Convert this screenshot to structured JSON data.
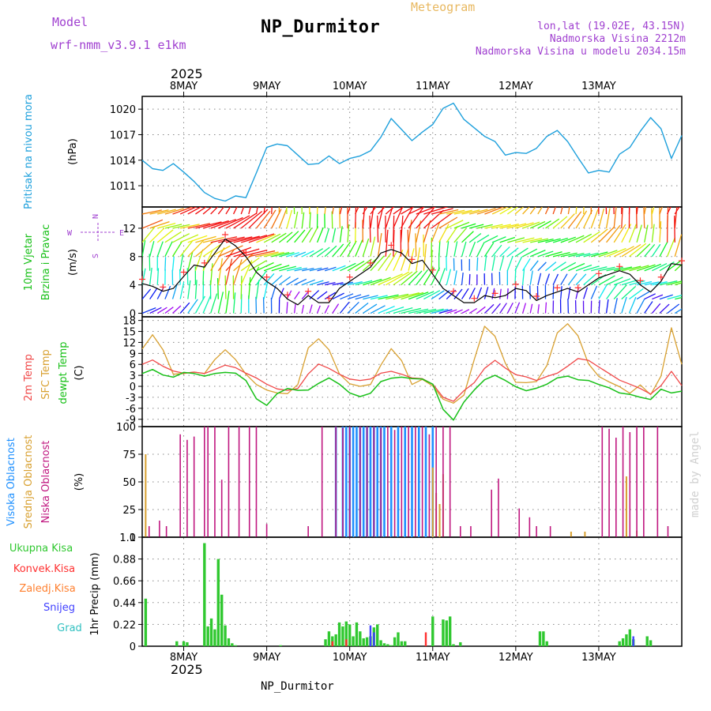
{
  "header": {
    "model_label": "Model",
    "model_name": "wrf-nmm_v3.9.1 e1km",
    "title": "NP_Durmitor",
    "meteogram_label": "Meteogram",
    "lonlat": "lon,lat (19.02E, 43.15N)",
    "altitude": "Nadmorska Visina 2212m",
    "model_altitude": "Nadmorska Visina u modelu 2034.15m",
    "footer": "NP_Durmitor",
    "watermark": "made by Angel",
    "year_top": "2025",
    "year_bottom": "2025"
  },
  "colors": {
    "pressure": "#1ea0dc",
    "wind_speed": "#000000",
    "wind_gust": "#ff3030",
    "temp2m": "#f04848",
    "sfc_temp": "#d8a030",
    "dewpt": "#18c018",
    "cloud_high": "#1e90ff",
    "cloud_mid": "#d8a030",
    "cloud_low": "#c01880",
    "precip_total": "#30c830",
    "precip_conv": "#ff3030",
    "precip_ice": "#ff8030",
    "snow": "#4040ff",
    "graupel": "#30c0c0",
    "title_purple": "#a040d0",
    "meteogram_orange": "#e8b860",
    "watermark": "#d0d0d0"
  },
  "chart_data": {
    "type": "line",
    "x_days": [
      "8MAY",
      "9MAY",
      "10MAY",
      "11MAY",
      "12MAY",
      "13MAY"
    ],
    "x_range_hours": [
      -12,
      144
    ],
    "panels": [
      {
        "id": "pressure",
        "labels": [
          "Pritisak na nivou mora"
        ],
        "unit": "(hPa)",
        "ylim": [
          1008.5,
          1021.5
        ],
        "yticks": [
          1011,
          1014,
          1017,
          1020
        ],
        "series": [
          {
            "name": "Pritisak na nivou mora",
            "x": [
              -12,
              -9,
              -6,
              -3,
              0,
              3,
              6,
              9,
              12,
              15,
              18,
              21,
              24,
              27,
              30,
              33,
              36,
              39,
              42,
              45,
              48,
              51,
              54,
              57,
              60,
              63,
              66,
              69,
              72,
              75,
              78,
              81,
              84,
              87,
              90,
              93,
              96,
              99,
              102,
              105,
              108,
              111,
              114,
              117,
              120,
              123,
              126,
              129,
              132,
              135,
              138,
              141,
              144
            ],
            "y": [
              1014.0,
              1013.0,
              1012.8,
              1013.6,
              1012.6,
              1011.5,
              1010.2,
              1009.5,
              1009.2,
              1009.8,
              1009.6,
              1012.5,
              1015.5,
              1015.9,
              1015.7,
              1014.6,
              1013.5,
              1013.6,
              1014.5,
              1013.6,
              1014.2,
              1014.5,
              1015.1,
              1016.7,
              1018.9,
              1017.6,
              1016.3,
              1017.3,
              1018.2,
              1020.1,
              1020.7,
              1018.8,
              1017.8,
              1016.8,
              1016.2,
              1014.6,
              1014.9,
              1014.8,
              1015.4,
              1016.8,
              1017.5,
              1016.2,
              1014.3,
              1012.5,
              1012.8,
              1012.6,
              1014.7,
              1015.5,
              1017.4,
              1019.0,
              1017.7,
              1014.2,
              1016.9
            ]
          }
        ]
      },
      {
        "id": "wind",
        "labels": [
          "10m Vjetar",
          "Brzina i Pravac"
        ],
        "unit": "(m/s)",
        "compass": [
          "N",
          "W",
          "E",
          "S"
        ],
        "ylim": [
          -0.5,
          15
        ],
        "yticks": [
          0,
          4,
          8,
          12
        ],
        "series": [
          {
            "name": "10m Vjetar",
            "x": [
              -12,
              -9,
              -6,
              -3,
              0,
              3,
              6,
              9,
              12,
              15,
              18,
              21,
              24,
              27,
              30,
              33,
              36,
              39,
              42,
              45,
              48,
              51,
              54,
              57,
              60,
              63,
              66,
              69,
              72,
              75,
              78,
              81,
              84,
              87,
              90,
              93,
              96,
              99,
              102,
              105,
              108,
              111,
              114,
              117,
              120,
              123,
              126,
              129,
              132,
              135,
              138,
              141,
              144
            ],
            "y": [
              4.2,
              3.8,
              3.1,
              3.5,
              5.2,
              6.8,
              6.5,
              8.5,
              10.5,
              9.5,
              8.0,
              5.8,
              4.5,
              3.5,
              2.0,
              1.2,
              2.5,
              1.5,
              1.5,
              3.5,
              4.5,
              5.5,
              6.5,
              8.5,
              9.0,
              8.5,
              7.0,
              7.5,
              5.5,
              3.5,
              2.5,
              1.5,
              1.5,
              2.5,
              2.2,
              2.5,
              3.5,
              3.2,
              1.8,
              2.5,
              3.0,
              3.5,
              3.0,
              4.0,
              5.0,
              5.5,
              6.0,
              5.5,
              4.0,
              3.0,
              4.5,
              7.0,
              6.8
            ]
          }
        ]
      },
      {
        "id": "temperature",
        "labels": [
          "2m Temp",
          "SFC Temp",
          "dewpt Temp"
        ],
        "unit": "(C)",
        "ylim": [
          -11,
          19
        ],
        "yticks": [
          -9,
          -6,
          -3,
          0,
          3,
          6,
          9,
          12,
          15,
          18
        ],
        "series": [
          {
            "name": "2m Temp",
            "x": [
              -12,
              -9,
              -6,
              -3,
              0,
              3,
              6,
              9,
              12,
              15,
              18,
              21,
              24,
              27,
              30,
              33,
              36,
              39,
              42,
              45,
              48,
              51,
              54,
              57,
              60,
              63,
              66,
              69,
              72,
              75,
              78,
              81,
              84,
              87,
              90,
              93,
              96,
              99,
              102,
              105,
              108,
              111,
              114,
              117,
              120,
              123,
              126,
              129,
              132,
              135,
              138,
              141,
              144
            ],
            "y": [
              6.0,
              7.2,
              5.5,
              4.2,
              3.6,
              3.9,
              3.5,
              4.6,
              5.8,
              5.1,
              3.6,
              2.3,
              0.6,
              -0.7,
              -1.1,
              -0.6,
              3.4,
              6.1,
              4.9,
              3.3,
              2.0,
              1.6,
              2.0,
              3.6,
              4.1,
              3.3,
              2.3,
              2.1,
              0.6,
              -3.0,
              -4.1,
              -1.2,
              1.0,
              4.9,
              7.1,
              5.0,
              3.2,
              2.6,
              1.6,
              2.7,
              3.6,
              5.5,
              7.6,
              7.1,
              5.3,
              3.5,
              1.7,
              0.6,
              -0.6,
              -2.1,
              0.2,
              4.1,
              0.2
            ]
          },
          {
            "name": "SFC Temp",
            "x": [
              -12,
              -9,
              -6,
              -3,
              0,
              3,
              6,
              9,
              12,
              15,
              18,
              21,
              24,
              27,
              30,
              33,
              36,
              39,
              42,
              45,
              48,
              51,
              54,
              57,
              60,
              63,
              66,
              69,
              72,
              75,
              78,
              81,
              84,
              87,
              90,
              93,
              96,
              99,
              102,
              105,
              108,
              111,
              114,
              117,
              120,
              123,
              126,
              129,
              132,
              135,
              138,
              141,
              144
            ],
            "y": [
              10.2,
              14.1,
              10.0,
              3.3,
              3.5,
              3.9,
              3.5,
              7.3,
              10.0,
              7.3,
              3.3,
              0.5,
              -1.0,
              -1.8,
              -2.0,
              0.5,
              10.5,
              13.0,
              10.0,
              3.4,
              0.7,
              0.0,
              0.5,
              5.8,
              10.3,
              7.0,
              0.5,
              1.9,
              0.1,
              -3.5,
              -4.6,
              -2.4,
              7.3,
              16.4,
              13.7,
              6.3,
              1.1,
              1.0,
              1.3,
              5.7,
              14.6,
              17.1,
              13.8,
              6.2,
              2.7,
              1.2,
              -0.1,
              -1.9,
              0.4,
              -2.3,
              2.8,
              16.0,
              6.0
            ]
          },
          {
            "name": "dewpt Temp",
            "x": [
              -12,
              -9,
              -6,
              -3,
              0,
              3,
              6,
              9,
              12,
              15,
              18,
              21,
              24,
              27,
              30,
              33,
              36,
              39,
              42,
              45,
              48,
              51,
              54,
              57,
              60,
              63,
              66,
              69,
              72,
              75,
              78,
              81,
              84,
              87,
              90,
              93,
              96,
              99,
              102,
              105,
              108,
              111,
              114,
              117,
              120,
              123,
              126,
              129,
              132,
              135,
              138,
              141,
              144
            ],
            "y": [
              3.5,
              4.6,
              3.1,
              2.5,
              3.8,
              3.5,
              2.8,
              3.5,
              3.8,
              3.6,
              1.6,
              -3.4,
              -5.2,
              -2.0,
              -0.6,
              -1.1,
              -1.0,
              0.8,
              2.3,
              0.6,
              -1.8,
              -2.8,
              -1.9,
              1.3,
              2.2,
              2.5,
              2.1,
              2.0,
              0.6,
              -6.3,
              -9.2,
              -4.3,
              -1.0,
              1.8,
              3.0,
              1.6,
              -0.1,
              -1.2,
              -0.5,
              0.6,
              2.3,
              2.8,
              1.8,
              1.6,
              0.5,
              -0.4,
              -1.8,
              -2.2,
              -3.0,
              -3.6,
              -0.8,
              -1.8,
              -1.3
            ]
          }
        ]
      },
      {
        "id": "clouds",
        "labels": [
          "Visoka Oblacnost",
          "Srednja Oblacnost",
          "Niska Oblacnost"
        ],
        "unit": "(%)",
        "ylim": [
          0,
          100
        ],
        "yticks": [
          0,
          25,
          50,
          75,
          100
        ],
        "type": "bar"
      },
      {
        "id": "precip",
        "labels": [
          "Ukupna Kisa",
          "Konvek.Kisa",
          "Zaledj.Kisa",
          "Snijeg",
          "Grad"
        ],
        "unit": "1hr Precip (mm)",
        "ylim": [
          0,
          1.1
        ],
        "yticks": [
          0,
          0.22,
          0.44,
          0.66,
          0.88,
          1.1
        ],
        "type": "bar"
      }
    ],
    "bars": {
      "cloud_low": {
        "x": [
          -10,
          -7,
          -5,
          -1,
          1,
          3,
          6,
          7,
          9,
          11,
          13,
          16,
          19,
          21,
          24,
          36,
          40,
          44,
          46,
          48,
          51,
          53,
          55,
          57,
          59,
          61,
          63,
          65,
          67,
          69,
          71,
          73,
          75,
          77,
          80,
          83,
          89,
          91,
          97,
          100,
          102,
          106,
          121,
          123,
          125,
          127,
          129,
          131,
          133,
          137,
          140
        ],
        "y": [
          10,
          15,
          10,
          93,
          88,
          91,
          100,
          100,
          100,
          52,
          100,
          100,
          100,
          100,
          12,
          10,
          100,
          100,
          99,
          100,
          100,
          100,
          100,
          99,
          100,
          97,
          100,
          100,
          100,
          100,
          93,
          100,
          100,
          100,
          10,
          10,
          43,
          53,
          26,
          18,
          10,
          10,
          100,
          98,
          90,
          100,
          95,
          100,
          100,
          100,
          10
        ]
      },
      "cloud_mid": {
        "x": [
          -11,
          72,
          128,
          131,
          73,
          74,
          112,
          75,
          116
        ],
        "y": [
          75,
          63,
          55,
          6,
          40,
          30,
          5,
          57,
          5
        ]
      },
      "cloud_high": {
        "x": [
          44,
          46,
          48,
          50,
          52,
          54,
          56,
          58,
          60,
          62,
          64,
          66,
          68,
          70,
          72,
          47,
          49,
          51,
          53,
          55,
          57
        ],
        "y": [
          100,
          100,
          100,
          100,
          100,
          100,
          100,
          100,
          100,
          100,
          100,
          100,
          100,
          100,
          100,
          100,
          100,
          100,
          100,
          100,
          100
        ]
      },
      "precip_total": {
        "x": [
          -11,
          -2,
          0,
          1,
          6,
          7,
          8,
          9,
          10,
          11,
          12,
          13,
          14,
          15,
          28,
          41,
          42,
          43,
          44,
          45,
          46,
          47,
          48,
          49,
          50,
          51,
          52,
          53,
          54,
          55,
          56,
          57,
          58,
          59,
          60,
          61,
          62,
          63,
          64,
          72,
          75,
          76,
          77,
          78,
          80,
          103,
          104,
          105,
          126,
          127,
          128,
          129,
          130,
          134,
          135
        ],
        "y": [
          0.48,
          0.05,
          0.05,
          0.04,
          1.04,
          0.2,
          0.28,
          0.17,
          0.88,
          0.52,
          0.21,
          0.08,
          0.03,
          0.01,
          0.01,
          0.07,
          0.15,
          0.1,
          0.12,
          0.24,
          0.2,
          0.25,
          0.22,
          0.1,
          0.24,
          0.15,
          0.08,
          0.09,
          0.1,
          0.19,
          0.22,
          0.06,
          0.03,
          0.02,
          0.01,
          0.09,
          0.14,
          0.05,
          0.05,
          0.3,
          0.27,
          0.26,
          0.3,
          0.02,
          0.04,
          0.15,
          0.15,
          0.05,
          0.05,
          0.08,
          0.12,
          0.17,
          0.07,
          0.1,
          0.06
        ]
      },
      "precip_conv": {
        "x": [
          70,
          43,
          47
        ],
        "y": [
          0.14,
          0.05,
          0.07
        ]
      },
      "snow": {
        "x": [
          54,
          55,
          130
        ],
        "y": [
          0.21,
          0.14,
          0.1
        ]
      }
    }
  }
}
